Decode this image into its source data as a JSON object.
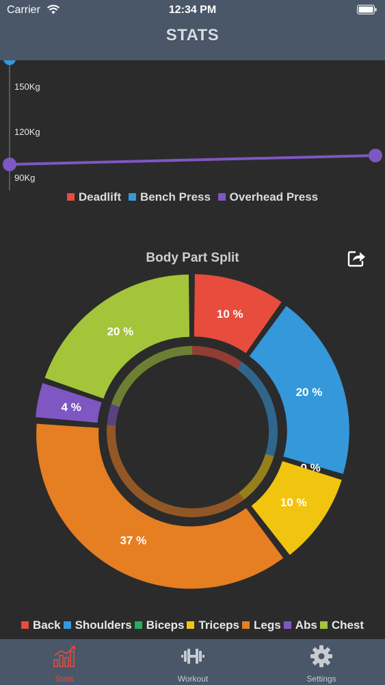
{
  "status_bar": {
    "carrier": "Carrier",
    "time": "12:34 PM"
  },
  "header": {
    "title": "STATS"
  },
  "line_chart": {
    "y_labels": [
      "150Kg",
      "120Kg",
      "90Kg"
    ]
  },
  "donut_title": "Body Part Split",
  "chart_data": [
    {
      "type": "line",
      "ylabel": "",
      "y_ticks": [
        "90Kg",
        "120Kg",
        "150Kg"
      ],
      "series": [
        {
          "name": "Deadlift",
          "color": "#e74c3c",
          "values": []
        },
        {
          "name": "Bench Press",
          "color": "#3498db",
          "values": []
        },
        {
          "name": "Overhead Press",
          "color": "#7e57c2",
          "values": [
            100,
            103
          ]
        }
      ],
      "legend": "bottom"
    },
    {
      "type": "pie",
      "title": "Body Part Split",
      "legend": "bottom",
      "slices": [
        {
          "label": "Back",
          "value": 10,
          "text": "10 %",
          "color": "#e74c3c"
        },
        {
          "label": "Shoulders",
          "value": 20,
          "text": "20 %",
          "color": "#3498db"
        },
        {
          "label": "Biceps",
          "value": 0,
          "text": "0 %",
          "color": "#27ae60"
        },
        {
          "label": "Triceps",
          "value": 10,
          "text": "10 %",
          "color": "#f1c40f"
        },
        {
          "label": "Legs",
          "value": 37,
          "text": "37 %",
          "color": "#e67e22"
        },
        {
          "label": "Abs",
          "value": 4,
          "text": "4 %",
          "color": "#7e57c2"
        },
        {
          "label": "Chest",
          "value": 20,
          "text": "20 %",
          "color": "#a4c43a"
        }
      ]
    }
  ],
  "tabbar": {
    "active_color": "#e74c3c",
    "inactive_color": "#c7ccd3",
    "tabs": [
      {
        "label": "Stats",
        "icon": "stats-icon",
        "active": true
      },
      {
        "label": "Workout",
        "icon": "dumbbell-icon",
        "active": false
      },
      {
        "label": "Settings",
        "icon": "gear-icon",
        "active": false
      }
    ]
  }
}
